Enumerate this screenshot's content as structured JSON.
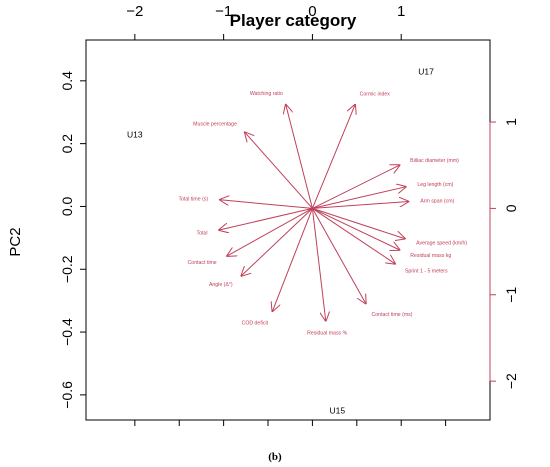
{
  "chart_data": {
    "type": "biplot",
    "title": "Player category",
    "ylabel": "PC2",
    "xlabel": "",
    "caption": "(b)",
    "grid": false,
    "axes": {
      "left": {
        "range": [
          -0.68,
          0.53
        ],
        "ticks": [
          -0.6,
          -0.4,
          -0.2,
          0.0,
          0.2,
          0.4
        ],
        "labels": [
          "−0.6",
          "−0.4",
          "−0.2",
          "0.0",
          "0.2",
          "0.4"
        ]
      },
      "bottom": {
        "range": [
          -2.55,
          2.0
        ],
        "ticks": [
          -2,
          -1.5,
          -1,
          -0.5,
          0,
          0.5,
          1,
          1.5
        ],
        "labels": [
          "",
          "",
          "",
          "",
          "",
          "",
          "",
          ""
        ]
      },
      "top": {
        "range": [
          -2.55,
          2.0
        ],
        "ticks": [
          -2,
          -1,
          0,
          1
        ],
        "labels": [
          "−2",
          "−1",
          "0",
          "1"
        ]
      },
      "right": {
        "range": [
          -2.45,
          1.95
        ],
        "ticks": [
          -2,
          -1,
          0,
          1
        ],
        "labels": [
          "−2",
          "−1",
          "0",
          "1"
        ]
      }
    },
    "observations": [
      {
        "label": "U13",
        "x": -2.0,
        "y": 0.22
      },
      {
        "label": "U17",
        "x": 1.28,
        "y": 0.42
      },
      {
        "label": "U15",
        "x": 0.28,
        "y": -0.66
      }
    ],
    "loadings": [
      {
        "label": "Watching ratio",
        "x": -0.3,
        "y": 1.2
      },
      {
        "label": "Cormic index",
        "x": 0.48,
        "y": 1.2
      },
      {
        "label": "Muscle percentage",
        "x": -0.76,
        "y": 0.88
      },
      {
        "label": "Biiliac diameter (mm)",
        "x": 0.98,
        "y": 0.5
      },
      {
        "label": "Leg length (cm)",
        "x": 1.05,
        "y": 0.25
      },
      {
        "label": "Arm span (cm)",
        "x": 1.08,
        "y": 0.08
      },
      {
        "label": "Total time (s)",
        "x": -1.04,
        "y": 0.1
      },
      {
        "label": "Total",
        "x": -1.05,
        "y": -0.25
      },
      {
        "label": "Average speed (km/h)",
        "x": 1.04,
        "y": -0.35
      },
      {
        "label": "Residual mass kg",
        "x": 0.98,
        "y": -0.48
      },
      {
        "label": "Contact time",
        "x": -0.96,
        "y": -0.55
      },
      {
        "label": "Angle (Δ°)",
        "x": -0.8,
        "y": -0.78
      },
      {
        "label": "Sprint 1 - 5 meters",
        "x": 0.93,
        "y": -0.64
      },
      {
        "label": "Contact time (ms)",
        "x": 0.6,
        "y": -1.1
      },
      {
        "label": "COD deficit",
        "x": -0.45,
        "y": -1.19
      },
      {
        "label": "Residual mass %",
        "x": 0.15,
        "y": -1.3
      }
    ],
    "colors": {
      "arrow": "#c0405a",
      "text": "#000000",
      "loading_text": "#c0405a"
    }
  }
}
